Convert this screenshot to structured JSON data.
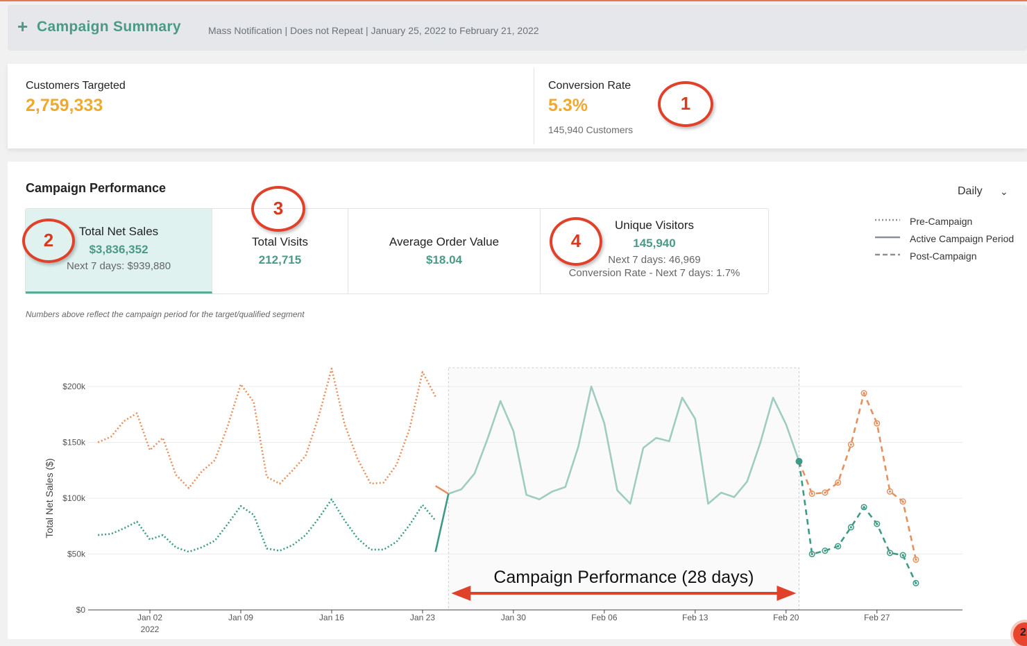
{
  "header": {
    "title": "Campaign Summary",
    "subtitle": "Mass Notification | Does not Repeat | January 25, 2022 to February 21, 2022"
  },
  "summary": {
    "customers_targeted_label": "Customers Targeted",
    "customers_targeted_value": "2,759,333",
    "conversion_rate_label": "Conversion Rate",
    "conversion_rate_value": "5.3%",
    "conversion_customers": "145,940 Customers"
  },
  "performance": {
    "title": "Campaign Performance",
    "period": "Daily",
    "tabs": [
      {
        "label": "Total Net Sales",
        "value": "$3,836,352",
        "note": "Next 7 days: $939,880"
      },
      {
        "label": "Total Visits",
        "value": "212,715"
      },
      {
        "label": "Average Order Value",
        "value": "$18.04"
      },
      {
        "label": "Unique Visitors",
        "value": "145,940",
        "note": "Next 7 days: 46,969",
        "note2": "Conversion Rate - Next 7 days: 1.7%"
      }
    ],
    "legend": [
      "Pre-Campaign",
      "Active Campaign Period",
      "Post-Campaign"
    ],
    "note": "Numbers above reflect the campaign period for the target/qualified segment"
  },
  "annotations": [
    "1",
    "2",
    "3",
    "4"
  ],
  "corner_badge": "2",
  "colors": {
    "accent": "#4a9a87",
    "orange": "#e4915f",
    "teal_light": "#9ecdc0",
    "teal_dark": "#3e9a86",
    "highlight": "#f0a92f",
    "red": "#e0412a"
  },
  "chart_data": {
    "type": "line",
    "ylabel": "Total Net Sales ($)",
    "ylim": [
      0,
      200000
    ],
    "yticks": [
      0,
      50000,
      100000,
      150000,
      200000
    ],
    "ytick_labels": [
      "$0",
      "$50k",
      "$100k",
      "$150k",
      "$200k"
    ],
    "xticks": [
      "2022-01-02",
      "2022-01-09",
      "2022-01-16",
      "2022-01-23",
      "2022-01-30",
      "2022-02-06",
      "2022-02-13",
      "2022-02-20",
      "2022-02-27"
    ],
    "xtick_labels": [
      "Jan 02",
      "Jan 09",
      "Jan 16",
      "Jan 23",
      "Jan 30",
      "Feb 06",
      "Feb 13",
      "Feb 20",
      "Feb 27"
    ],
    "xtick_year": "2022",
    "xrange": [
      "2021-12-29",
      "2022-03-07"
    ],
    "campaign_window": [
      "2022-01-25",
      "2022-02-21"
    ],
    "annotation": "Campaign Performance (28 days)",
    "series": [
      {
        "segment": "overall",
        "phase": "pre",
        "color": "#e4915f",
        "style": "dotted",
        "x": [
          "2021-12-29",
          "2021-12-30",
          "2021-12-31",
          "2022-01-01",
          "2022-01-02",
          "2022-01-03",
          "2022-01-04",
          "2022-01-05",
          "2022-01-06",
          "2022-01-07",
          "2022-01-08",
          "2022-01-09",
          "2022-01-10",
          "2022-01-11",
          "2022-01-12",
          "2022-01-13",
          "2022-01-14",
          "2022-01-15",
          "2022-01-16",
          "2022-01-17",
          "2022-01-18",
          "2022-01-19",
          "2022-01-20",
          "2022-01-21",
          "2022-01-22",
          "2022-01-23",
          "2022-01-24"
        ],
        "y": [
          150000,
          155000,
          169000,
          176000,
          143000,
          154000,
          121000,
          109000,
          124000,
          134000,
          165000,
          202000,
          186000,
          119000,
          113000,
          125000,
          138000,
          173000,
          216000,
          166000,
          135000,
          113000,
          114000,
          130000,
          162000,
          213000,
          191000
        ]
      },
      {
        "segment": "overall",
        "phase": "transition",
        "color": "#e4915f",
        "style": "solid",
        "x": [
          "2022-01-24",
          "2022-01-25"
        ],
        "y": [
          111000,
          104000
        ]
      },
      {
        "segment": "overall",
        "phase": "active",
        "color": "#9ecdc0",
        "style": "solid",
        "x": [
          "2022-01-25",
          "2022-01-26",
          "2022-01-27",
          "2022-01-28",
          "2022-01-29",
          "2022-01-30",
          "2022-01-31",
          "2022-02-01",
          "2022-02-02",
          "2022-02-03",
          "2022-02-04",
          "2022-02-05",
          "2022-02-06",
          "2022-02-07",
          "2022-02-08",
          "2022-02-09",
          "2022-02-10",
          "2022-02-11",
          "2022-02-12",
          "2022-02-13",
          "2022-02-14",
          "2022-02-15",
          "2022-02-16",
          "2022-02-17",
          "2022-02-18",
          "2022-02-19",
          "2022-02-20",
          "2022-02-21"
        ],
        "y": [
          104000,
          108000,
          122000,
          153000,
          187000,
          160000,
          103000,
          99000,
          106000,
          110000,
          146000,
          200000,
          167000,
          107000,
          95000,
          145000,
          154000,
          151000,
          190000,
          171000,
          95000,
          105000,
          101000,
          115000,
          149000,
          190000,
          166000,
          133000
        ]
      },
      {
        "segment": "overall",
        "phase": "post",
        "color": "#e4915f",
        "style": "dashed",
        "x": [
          "2022-02-21",
          "2022-02-22",
          "2022-02-23",
          "2022-02-24",
          "2022-02-25",
          "2022-02-26",
          "2022-02-27",
          "2022-02-28",
          "2022-03-01",
          "2022-03-02"
        ],
        "y": [
          133000,
          104000,
          105000,
          114000,
          148000,
          194000,
          167000,
          106000,
          97000,
          45000
        ]
      },
      {
        "segment": "targeted",
        "phase": "pre",
        "color": "#3e9a86",
        "style": "dotted",
        "x": [
          "2021-12-29",
          "2021-12-30",
          "2021-12-31",
          "2022-01-01",
          "2022-01-02",
          "2022-01-03",
          "2022-01-04",
          "2022-01-05",
          "2022-01-06",
          "2022-01-07",
          "2022-01-08",
          "2022-01-09",
          "2022-01-10",
          "2022-01-11",
          "2022-01-12",
          "2022-01-13",
          "2022-01-14",
          "2022-01-15",
          "2022-01-16",
          "2022-01-17",
          "2022-01-18",
          "2022-01-19",
          "2022-01-20",
          "2022-01-21",
          "2022-01-22",
          "2022-01-23",
          "2022-01-24"
        ],
        "y": [
          67000,
          68000,
          73000,
          79000,
          63000,
          67000,
          56000,
          52000,
          56000,
          62000,
          77000,
          93000,
          85000,
          55000,
          53000,
          58000,
          67000,
          82000,
          99000,
          80000,
          64000,
          54000,
          54000,
          61000,
          76000,
          94000,
          80000
        ]
      },
      {
        "segment": "targeted",
        "phase": "transition",
        "color": "#3e9a86",
        "style": "solid",
        "x": [
          "2022-01-24",
          "2022-01-25"
        ],
        "y": [
          52000,
          104000
        ]
      },
      {
        "segment": "targeted",
        "phase": "post",
        "color": "#3e9a86",
        "style": "dashed",
        "x": [
          "2022-02-21",
          "2022-02-22",
          "2022-02-23",
          "2022-02-24",
          "2022-02-25",
          "2022-02-26",
          "2022-02-27",
          "2022-02-28",
          "2022-03-01",
          "2022-03-02"
        ],
        "y": [
          133000,
          50000,
          53000,
          57000,
          74000,
          92000,
          77000,
          51000,
          49000,
          24000
        ]
      }
    ]
  }
}
